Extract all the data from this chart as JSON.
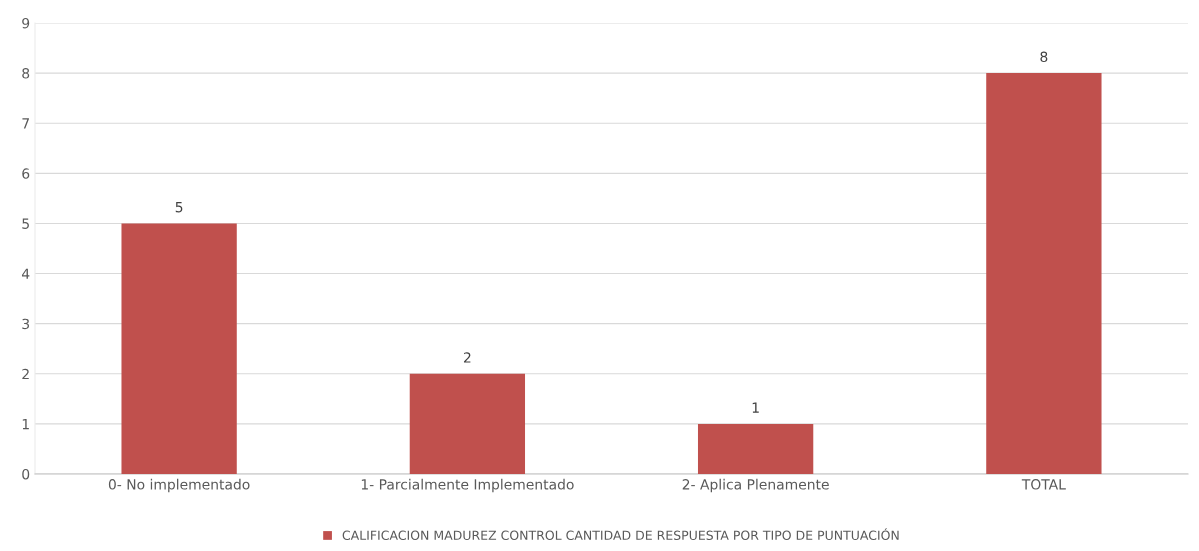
{
  "chart_data": {
    "type": "bar",
    "categories": [
      "0- No implementado",
      "1- Parcialmente Implementado",
      "2- Aplica Plenamente",
      "TOTAL"
    ],
    "series": [
      {
        "name": "CALIFICACION MADUREZ CONTROL CANTIDAD DE RESPUESTA POR TIPO DE PUNTUACIÓN",
        "color": "#c0504d",
        "values": [
          5,
          2,
          1,
          8
        ]
      }
    ],
    "ylim": [
      0,
      9
    ],
    "yticks": [
      0,
      1,
      2,
      3,
      4,
      5,
      6,
      7,
      8,
      9
    ],
    "grid": "y",
    "legend": "bottom",
    "data_labels": true
  }
}
